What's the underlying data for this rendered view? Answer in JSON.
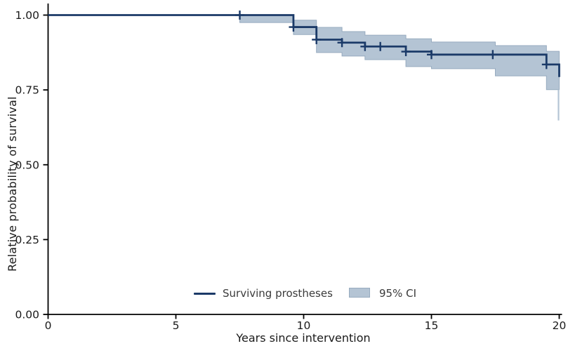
{
  "chart_data": {
    "type": "line",
    "subtype": "kaplan-meier-step",
    "title": "",
    "xlabel": "Years since intervention",
    "ylabel": "Relative probability of survival",
    "xlim": [
      0,
      20
    ],
    "ylim": [
      0.0,
      1.0
    ],
    "grid": false,
    "x_ticks": [
      0,
      5,
      10,
      15,
      20
    ],
    "x_tick_labels": [
      "0",
      "5",
      "10",
      "15",
      "20"
    ],
    "y_ticks": [
      0.0,
      0.25,
      0.5,
      0.75,
      1.0
    ],
    "y_tick_labels": [
      "0.00",
      "0.25",
      "0.50",
      "0.75",
      "1.00"
    ],
    "series": [
      {
        "name": "Surviving prostheses",
        "drawstyle": "steps-post",
        "color": "#1b3a68",
        "points": [
          [
            0,
            1.0
          ],
          [
            9.6,
            1.0
          ],
          [
            9.6,
            0.96
          ],
          [
            10.5,
            0.96
          ],
          [
            10.5,
            0.918
          ],
          [
            11.5,
            0.918
          ],
          [
            11.5,
            0.908
          ],
          [
            12.4,
            0.908
          ],
          [
            12.4,
            0.895
          ],
          [
            14.0,
            0.895
          ],
          [
            14.0,
            0.878
          ],
          [
            15.0,
            0.878
          ],
          [
            15.0,
            0.868
          ],
          [
            19.5,
            0.868
          ],
          [
            19.5,
            0.835
          ],
          [
            20.0,
            0.835
          ],
          [
            20.0,
            0.793
          ]
        ]
      }
    ],
    "censor_marks": [
      [
        7.5,
        1.0
      ],
      [
        9.6,
        0.96
      ],
      [
        10.5,
        0.918
      ],
      [
        11.5,
        0.908
      ],
      [
        12.4,
        0.895
      ],
      [
        13.0,
        0.895
      ],
      [
        14.0,
        0.878
      ],
      [
        15.0,
        0.868
      ],
      [
        17.4,
        0.868
      ],
      [
        19.5,
        0.835
      ]
    ],
    "ci_band": {
      "name": "95% CI",
      "fill": "#b4c4d4",
      "edge": "#97abbf",
      "segments": [
        [
          7.5,
          9.6,
          1.0,
          0.975
        ],
        [
          9.6,
          10.5,
          0.983,
          0.935
        ],
        [
          10.5,
          11.5,
          0.959,
          0.875
        ],
        [
          11.5,
          12.4,
          0.945,
          0.863
        ],
        [
          12.4,
          14.0,
          0.933,
          0.851
        ],
        [
          14.0,
          15.0,
          0.921,
          0.828
        ],
        [
          15.0,
          17.5,
          0.91,
          0.821
        ],
        [
          17.5,
          19.5,
          0.898,
          0.797
        ],
        [
          19.5,
          20.0,
          0.879,
          0.751
        ]
      ],
      "terminal_drop": [
        20.0,
        0.751,
        0.648
      ]
    },
    "legend": {
      "position": "lower center",
      "entries": [
        {
          "label": "Surviving prostheses",
          "type": "line"
        },
        {
          "label": "95% CI",
          "type": "box"
        }
      ]
    },
    "axis_color": "#000000",
    "tick_label_color": "#1a1a1a"
  }
}
